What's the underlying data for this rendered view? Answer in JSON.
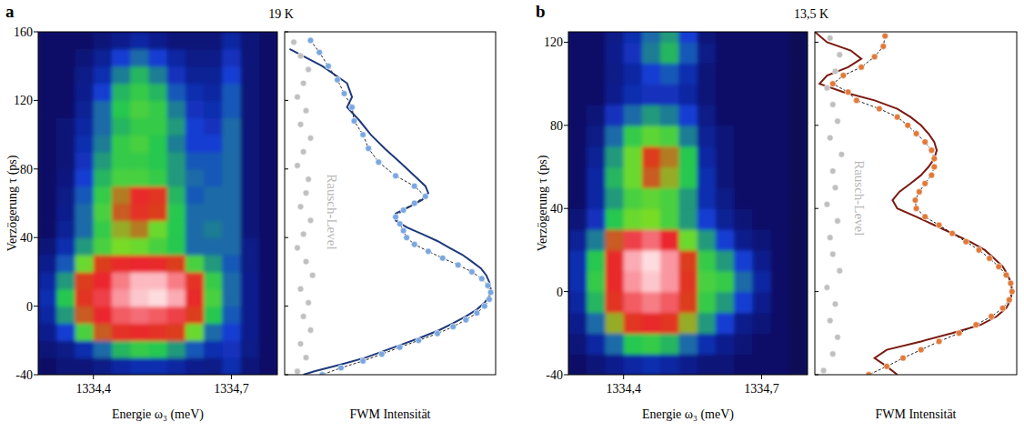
{
  "chart_data": [
    {
      "type": "heatmap",
      "panel_label": "a",
      "title": "19 K",
      "xlabel": "Energie ω₃ (meV)",
      "ylabel": "Verzögerung τ (ps)",
      "xlim": [
        1334.28,
        1334.8
      ],
      "ylim": [
        -40,
        160
      ],
      "xticks": [
        {
          "value": 1334.4,
          "label": "1334,4"
        },
        {
          "value": 1334.7,
          "label": "1334,7"
        }
      ],
      "yticks": [
        -40,
        0,
        40,
        80,
        120,
        160
      ],
      "zlim": [
        0,
        1
      ],
      "x": [
        1334.3,
        1334.34,
        1334.38,
        1334.42,
        1334.46,
        1334.5,
        1334.54,
        1334.58,
        1334.62,
        1334.66,
        1334.7,
        1334.74,
        1334.78
      ],
      "y": [
        -35,
        -25,
        -15,
        -5,
        5,
        15,
        25,
        35,
        45,
        55,
        65,
        75,
        85,
        95,
        105,
        115,
        125,
        135,
        145,
        155
      ],
      "cells": [
        [
          0.1,
          0.12,
          0.12,
          0.14,
          0.18,
          0.2,
          0.2,
          0.18,
          0.15,
          0.14,
          0.2,
          0.12,
          0.1
        ],
        [
          0.12,
          0.14,
          0.2,
          0.3,
          0.38,
          0.42,
          0.4,
          0.35,
          0.28,
          0.2,
          0.22,
          0.14,
          0.1
        ],
        [
          0.15,
          0.25,
          0.45,
          0.6,
          0.68,
          0.7,
          0.68,
          0.62,
          0.5,
          0.3,
          0.25,
          0.15,
          0.1
        ],
        [
          0.18,
          0.35,
          0.6,
          0.72,
          0.78,
          0.8,
          0.78,
          0.75,
          0.62,
          0.4,
          0.28,
          0.15,
          0.1
        ],
        [
          0.2,
          0.4,
          0.65,
          0.75,
          0.85,
          0.92,
          0.95,
          0.88,
          0.7,
          0.45,
          0.3,
          0.15,
          0.1
        ],
        [
          0.18,
          0.35,
          0.62,
          0.72,
          0.82,
          0.9,
          0.9,
          0.82,
          0.68,
          0.42,
          0.3,
          0.15,
          0.1
        ],
        [
          0.15,
          0.28,
          0.5,
          0.62,
          0.7,
          0.72,
          0.7,
          0.62,
          0.45,
          0.35,
          0.28,
          0.14,
          0.1
        ],
        [
          0.12,
          0.2,
          0.35,
          0.45,
          0.52,
          0.5,
          0.45,
          0.4,
          0.3,
          0.3,
          0.3,
          0.14,
          0.1
        ],
        [
          0.1,
          0.16,
          0.3,
          0.42,
          0.55,
          0.58,
          0.5,
          0.4,
          0.3,
          0.32,
          0.3,
          0.12,
          0.1
        ],
        [
          0.1,
          0.15,
          0.3,
          0.45,
          0.6,
          0.68,
          0.62,
          0.4,
          0.3,
          0.3,
          0.3,
          0.12,
          0.1
        ],
        [
          0.1,
          0.14,
          0.28,
          0.42,
          0.58,
          0.7,
          0.66,
          0.38,
          0.28,
          0.3,
          0.3,
          0.12,
          0.1
        ],
        [
          0.1,
          0.13,
          0.25,
          0.38,
          0.45,
          0.45,
          0.42,
          0.35,
          0.3,
          0.28,
          0.3,
          0.12,
          0.1
        ],
        [
          0.1,
          0.12,
          0.22,
          0.35,
          0.42,
          0.42,
          0.4,
          0.35,
          0.28,
          0.28,
          0.3,
          0.12,
          0.1
        ],
        [
          0.1,
          0.12,
          0.2,
          0.32,
          0.42,
          0.45,
          0.4,
          0.32,
          0.25,
          0.25,
          0.3,
          0.12,
          0.1
        ],
        [
          0.1,
          0.12,
          0.18,
          0.3,
          0.38,
          0.42,
          0.42,
          0.35,
          0.25,
          0.22,
          0.3,
          0.12,
          0.1
        ],
        [
          0.1,
          0.1,
          0.16,
          0.3,
          0.4,
          0.45,
          0.42,
          0.32,
          0.22,
          0.2,
          0.28,
          0.12,
          0.1
        ],
        [
          0.1,
          0.1,
          0.15,
          0.25,
          0.38,
          0.42,
          0.38,
          0.28,
          0.2,
          0.18,
          0.28,
          0.12,
          0.1
        ],
        [
          0.1,
          0.1,
          0.14,
          0.2,
          0.32,
          0.38,
          0.32,
          0.22,
          0.16,
          0.16,
          0.25,
          0.12,
          0.1
        ],
        [
          0.1,
          0.1,
          0.12,
          0.16,
          0.25,
          0.3,
          0.25,
          0.18,
          0.14,
          0.14,
          0.22,
          0.12,
          0.1
        ],
        [
          0.1,
          0.1,
          0.1,
          0.12,
          0.15,
          0.18,
          0.15,
          0.12,
          0.12,
          0.12,
          0.18,
          0.12,
          0.1
        ]
      ]
    },
    {
      "type": "line",
      "xlabel": "FWM Intensität",
      "annotation": "Rausch-Level",
      "log": "x",
      "tick_labels": false,
      "xlim": [
        0.0005,
        1.2
      ],
      "ylim": [
        -40,
        160
      ],
      "yticks": [
        -40,
        0,
        40,
        80,
        120,
        160
      ],
      "series": [
        {
          "color": "#7aa7e0",
          "marker": "circle",
          "line_style": "dashed",
          "y": [
            155,
            148,
            140,
            132,
            124,
            116,
            108,
            100,
            92,
            84,
            76,
            70,
            64,
            60,
            56,
            52,
            48,
            44,
            40,
            36,
            32,
            28,
            24,
            20,
            16,
            12,
            8,
            4,
            0,
            -4,
            -8,
            -12,
            -16,
            -20,
            -24,
            -28,
            -32,
            -36,
            -40
          ],
          "values": [
            0.0013,
            0.0018,
            0.0025,
            0.0035,
            0.0045,
            0.006,
            0.0065,
            0.009,
            0.011,
            0.016,
            0.03,
            0.06,
            0.09,
            0.06,
            0.04,
            0.03,
            0.035,
            0.04,
            0.045,
            0.06,
            0.1,
            0.17,
            0.3,
            0.5,
            0.72,
            0.9,
            1.0,
            0.95,
            0.8,
            0.6,
            0.4,
            0.25,
            0.14,
            0.07,
            0.035,
            0.018,
            0.009,
            0.004,
            0.002
          ]
        },
        {
          "color": "#1e3a7a",
          "line_style": "solid",
          "y": [
            150,
            140,
            130,
            122,
            116,
            108,
            100,
            92,
            84,
            76,
            70,
            66,
            62,
            58,
            54,
            50,
            46,
            42,
            38,
            34,
            30,
            26,
            22,
            18,
            14,
            10,
            6,
            2,
            -2,
            -6,
            -10,
            -14,
            -18,
            -22,
            -26,
            -30,
            -34,
            -38,
            -40
          ],
          "values": [
            0.0006,
            0.002,
            0.005,
            0.006,
            0.005,
            0.008,
            0.012,
            0.02,
            0.035,
            0.06,
            0.09,
            0.1,
            0.08,
            0.05,
            0.03,
            0.03,
            0.045,
            0.08,
            0.14,
            0.22,
            0.35,
            0.5,
            0.7,
            0.85,
            0.95,
            1.0,
            0.95,
            0.8,
            0.6,
            0.4,
            0.25,
            0.15,
            0.08,
            0.04,
            0.02,
            0.01,
            0.004,
            0.0015,
            0.001
          ]
        },
        {
          "color": "#c0c0c0",
          "marker": "circle",
          "y": [
            -38,
            -30,
            -22,
            -14,
            -6,
            2,
            10,
            18,
            26,
            34,
            42,
            50,
            58,
            66,
            74,
            82,
            90,
            98,
            106,
            114,
            122,
            130,
            138,
            146,
            154
          ],
          "values": [
            0.0008,
            0.0011,
            0.0009,
            0.0013,
            0.001,
            0.0012,
            0.0009,
            0.0014,
            0.0011,
            0.0008,
            0.001,
            0.0013,
            0.0009,
            0.0011,
            0.0012,
            0.0008,
            0.001,
            0.0013,
            0.0009,
            0.0011,
            0.0008,
            0.001,
            0.0012,
            0.0009,
            0.0007
          ]
        }
      ]
    },
    {
      "type": "heatmap",
      "panel_label": "b",
      "title": "13,5 K",
      "xlabel": "Energie ω₃ (meV)",
      "ylabel": "Verzögerung τ (ps)",
      "xlim": [
        1334.28,
        1334.8
      ],
      "ylim": [
        -40,
        125
      ],
      "xticks": [
        {
          "value": 1334.4,
          "label": "1334,4"
        },
        {
          "value": 1334.7,
          "label": "1334,7"
        }
      ],
      "yticks": [
        -40,
        0,
        40,
        80,
        120
      ],
      "zlim": [
        0,
        1
      ],
      "x": [
        1334.3,
        1334.34,
        1334.38,
        1334.42,
        1334.46,
        1334.5,
        1334.54,
        1334.58,
        1334.62,
        1334.66,
        1334.7,
        1334.74,
        1334.78
      ],
      "y": [
        -35,
        -25,
        -15,
        -5,
        5,
        15,
        25,
        35,
        45,
        55,
        65,
        75,
        85,
        95,
        105,
        115,
        125
      ],
      "cells": [
        [
          0.1,
          0.12,
          0.15,
          0.18,
          0.2,
          0.18,
          0.15,
          0.12,
          0.12,
          0.1,
          0.1,
          0.1,
          0.08
        ],
        [
          0.12,
          0.18,
          0.3,
          0.4,
          0.42,
          0.38,
          0.3,
          0.2,
          0.15,
          0.12,
          0.1,
          0.1,
          0.08
        ],
        [
          0.15,
          0.3,
          0.55,
          0.66,
          0.7,
          0.66,
          0.55,
          0.35,
          0.25,
          0.15,
          0.12,
          0.1,
          0.08
        ],
        [
          0.18,
          0.38,
          0.65,
          0.78,
          0.82,
          0.78,
          0.62,
          0.42,
          0.35,
          0.25,
          0.15,
          0.1,
          0.08
        ],
        [
          0.2,
          0.42,
          0.7,
          0.85,
          0.92,
          0.85,
          0.65,
          0.45,
          0.42,
          0.3,
          0.18,
          0.1,
          0.08
        ],
        [
          0.2,
          0.4,
          0.7,
          0.88,
          0.95,
          0.85,
          0.62,
          0.42,
          0.35,
          0.25,
          0.15,
          0.1,
          0.08
        ],
        [
          0.16,
          0.32,
          0.6,
          0.75,
          0.8,
          0.72,
          0.5,
          0.35,
          0.25,
          0.15,
          0.12,
          0.1,
          0.08
        ],
        [
          0.12,
          0.22,
          0.4,
          0.5,
          0.52,
          0.45,
          0.35,
          0.25,
          0.16,
          0.12,
          0.1,
          0.1,
          0.08
        ],
        [
          0.1,
          0.18,
          0.35,
          0.45,
          0.48,
          0.45,
          0.35,
          0.2,
          0.14,
          0.1,
          0.1,
          0.1,
          0.08
        ],
        [
          0.1,
          0.18,
          0.38,
          0.5,
          0.6,
          0.55,
          0.4,
          0.2,
          0.12,
          0.1,
          0.1,
          0.1,
          0.08
        ],
        [
          0.1,
          0.16,
          0.35,
          0.5,
          0.62,
          0.58,
          0.4,
          0.18,
          0.12,
          0.1,
          0.1,
          0.1,
          0.08
        ],
        [
          0.1,
          0.14,
          0.3,
          0.42,
          0.48,
          0.45,
          0.32,
          0.16,
          0.12,
          0.1,
          0.1,
          0.1,
          0.08
        ],
        [
          0.1,
          0.12,
          0.22,
          0.3,
          0.35,
          0.32,
          0.25,
          0.14,
          0.1,
          0.1,
          0.1,
          0.1,
          0.08
        ],
        [
          0.1,
          0.1,
          0.15,
          0.2,
          0.22,
          0.22,
          0.18,
          0.12,
          0.1,
          0.1,
          0.1,
          0.1,
          0.08
        ],
        [
          0.1,
          0.1,
          0.14,
          0.18,
          0.25,
          0.28,
          0.2,
          0.12,
          0.1,
          0.1,
          0.1,
          0.1,
          0.08
        ],
        [
          0.1,
          0.1,
          0.15,
          0.22,
          0.32,
          0.38,
          0.28,
          0.14,
          0.1,
          0.1,
          0.1,
          0.1,
          0.08
        ],
        [
          0.1,
          0.1,
          0.14,
          0.2,
          0.3,
          0.35,
          0.25,
          0.12,
          0.1,
          0.1,
          0.1,
          0.1,
          0.08
        ]
      ]
    },
    {
      "type": "line",
      "xlabel": "FWM Intensität",
      "annotation": "Rausch-Level",
      "log": "x",
      "tick_labels": false,
      "xlim": [
        0.0005,
        1.2
      ],
      "ylim": [
        -40,
        125
      ],
      "yticks": [
        -40,
        0,
        40,
        80,
        120
      ],
      "series": [
        {
          "color": "#e07a3a",
          "marker": "circle",
          "line_style": "dashed",
          "y": [
            123,
            118,
            113,
            108,
            104,
            100,
            96,
            92,
            88,
            84,
            80,
            76,
            72,
            68,
            64,
            60,
            56,
            52,
            48,
            44,
            40,
            36,
            32,
            28,
            24,
            20,
            16,
            12,
            8,
            4,
            0,
            -4,
            -8,
            -12,
            -16,
            -20,
            -24,
            -28,
            -32,
            -36,
            -40
          ],
          "values": [
            0.0075,
            0.007,
            0.005,
            0.003,
            0.0015,
            0.001,
            0.0018,
            0.0025,
            0.006,
            0.012,
            0.018,
            0.025,
            0.035,
            0.045,
            0.05,
            0.05,
            0.045,
            0.035,
            0.028,
            0.024,
            0.025,
            0.035,
            0.06,
            0.1,
            0.17,
            0.28,
            0.42,
            0.6,
            0.8,
            0.95,
            1.0,
            0.9,
            0.7,
            0.45,
            0.25,
            0.13,
            0.06,
            0.03,
            0.015,
            0.008,
            0.004
          ]
        },
        {
          "color": "#7a1a10",
          "line_style": "solid",
          "y": [
            125,
            120,
            116,
            112,
            108,
            104,
            100,
            96,
            92,
            88,
            84,
            80,
            76,
            72,
            68,
            64,
            60,
            56,
            52,
            48,
            44,
            40,
            36,
            32,
            28,
            24,
            20,
            16,
            12,
            8,
            4,
            0,
            -4,
            -8,
            -12,
            -16,
            -20,
            -24,
            -28,
            -32,
            -36,
            -40
          ],
          "values": [
            0.0005,
            0.0008,
            0.002,
            0.003,
            0.0018,
            0.0008,
            0.0006,
            0.0015,
            0.005,
            0.012,
            0.02,
            0.03,
            0.04,
            0.05,
            0.055,
            0.05,
            0.04,
            0.03,
            0.02,
            0.013,
            0.01,
            0.012,
            0.025,
            0.05,
            0.1,
            0.2,
            0.35,
            0.5,
            0.7,
            0.85,
            0.97,
            1.0,
            0.95,
            0.8,
            0.55,
            0.3,
            0.1,
            0.03,
            0.008,
            0.005,
            0.008,
            0.012
          ]
        },
        {
          "color": "#c0c0c0",
          "marker": "circle",
          "y": [
            -38,
            -30,
            -22,
            -14,
            -6,
            2,
            10,
            18,
            26,
            34,
            42,
            50,
            58,
            66,
            74,
            82,
            90,
            98,
            106,
            114,
            122
          ],
          "values": [
            0.0007,
            0.001,
            0.0012,
            0.0009,
            0.0011,
            0.0008,
            0.0013,
            0.001,
            0.0009,
            0.0012,
            0.0008,
            0.0011,
            0.001,
            0.0014,
            0.0009,
            0.0012,
            0.001,
            0.0008,
            0.0011,
            0.0013,
            0.0009
          ]
        }
      ]
    }
  ]
}
